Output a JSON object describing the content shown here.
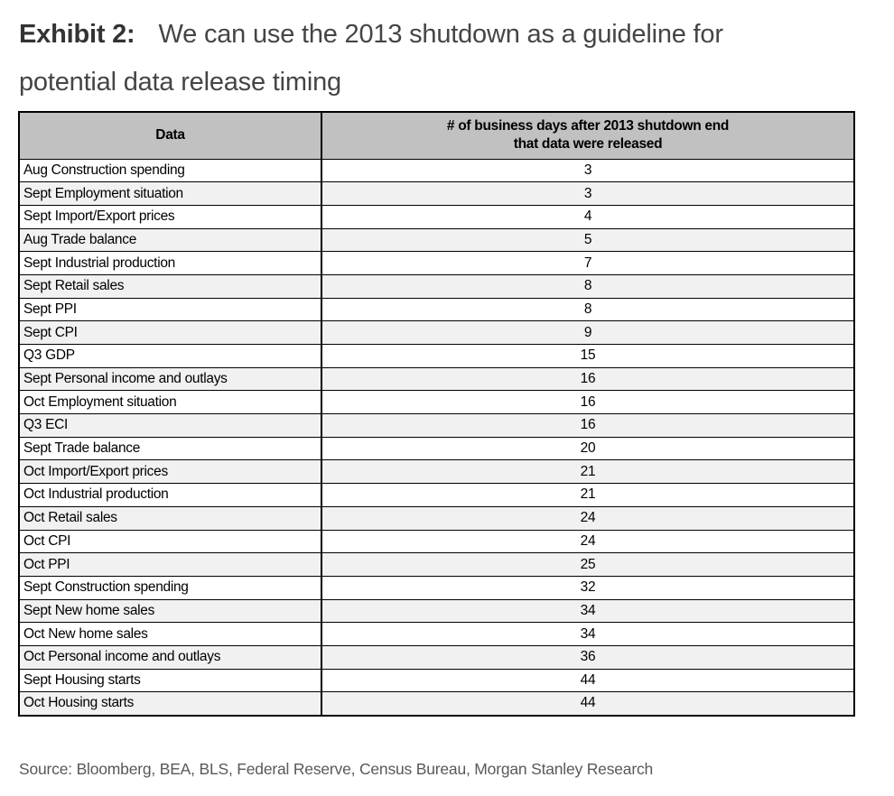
{
  "title": {
    "label": "Exhibit 2:",
    "lines": [
      "We can use the 2013 shutdown as a guideline for",
      "potential data release timing"
    ]
  },
  "table": {
    "headers": {
      "data": "Data",
      "days": [
        "# of business days after 2013 shutdown end",
        "that data were released"
      ]
    },
    "rows": [
      {
        "data": "Aug Construction spending",
        "days": 3
      },
      {
        "data": "Sept Employment situation",
        "days": 3
      },
      {
        "data": "Sept Import/Export prices",
        "days": 4
      },
      {
        "data": "Aug Trade balance",
        "days": 5
      },
      {
        "data": "Sept Industrial production",
        "days": 7
      },
      {
        "data": "Sept Retail sales",
        "days": 8
      },
      {
        "data": "Sept PPI",
        "days": 8
      },
      {
        "data": "Sept CPI",
        "days": 9
      },
      {
        "data": "Q3 GDP",
        "days": 15
      },
      {
        "data": "Sept Personal income and outlays",
        "days": 16
      },
      {
        "data": "Oct Employment situation",
        "days": 16
      },
      {
        "data": "Q3 ECI",
        "days": 16
      },
      {
        "data": "Sept Trade balance",
        "days": 20
      },
      {
        "data": "Oct Import/Export prices",
        "days": 21
      },
      {
        "data": "Oct Industrial production",
        "days": 21
      },
      {
        "data": "Oct Retail sales",
        "days": 24
      },
      {
        "data": "Oct CPI",
        "days": 24
      },
      {
        "data": "Oct PPI",
        "days": 25
      },
      {
        "data": "Sept Construction spending",
        "days": 32
      },
      {
        "data": "Sept New home sales",
        "days": 34
      },
      {
        "data": "Oct New home sales",
        "days": 34
      },
      {
        "data": "Oct Personal income and outlays",
        "days": 36
      },
      {
        "data": "Sept Housing starts",
        "days": 44
      },
      {
        "data": "Oct Housing starts",
        "days": 44
      }
    ]
  },
  "source_line": "Source: Bloomberg, BEA, BLS, Federal Reserve, Census Bureau, Morgan Stanley Research",
  "colors": {
    "header_bg": "#c1c1c1",
    "stripe_bg": "#f1f1f1",
    "border": "#000000",
    "title_text": "#454545",
    "source_text": "#595959"
  }
}
